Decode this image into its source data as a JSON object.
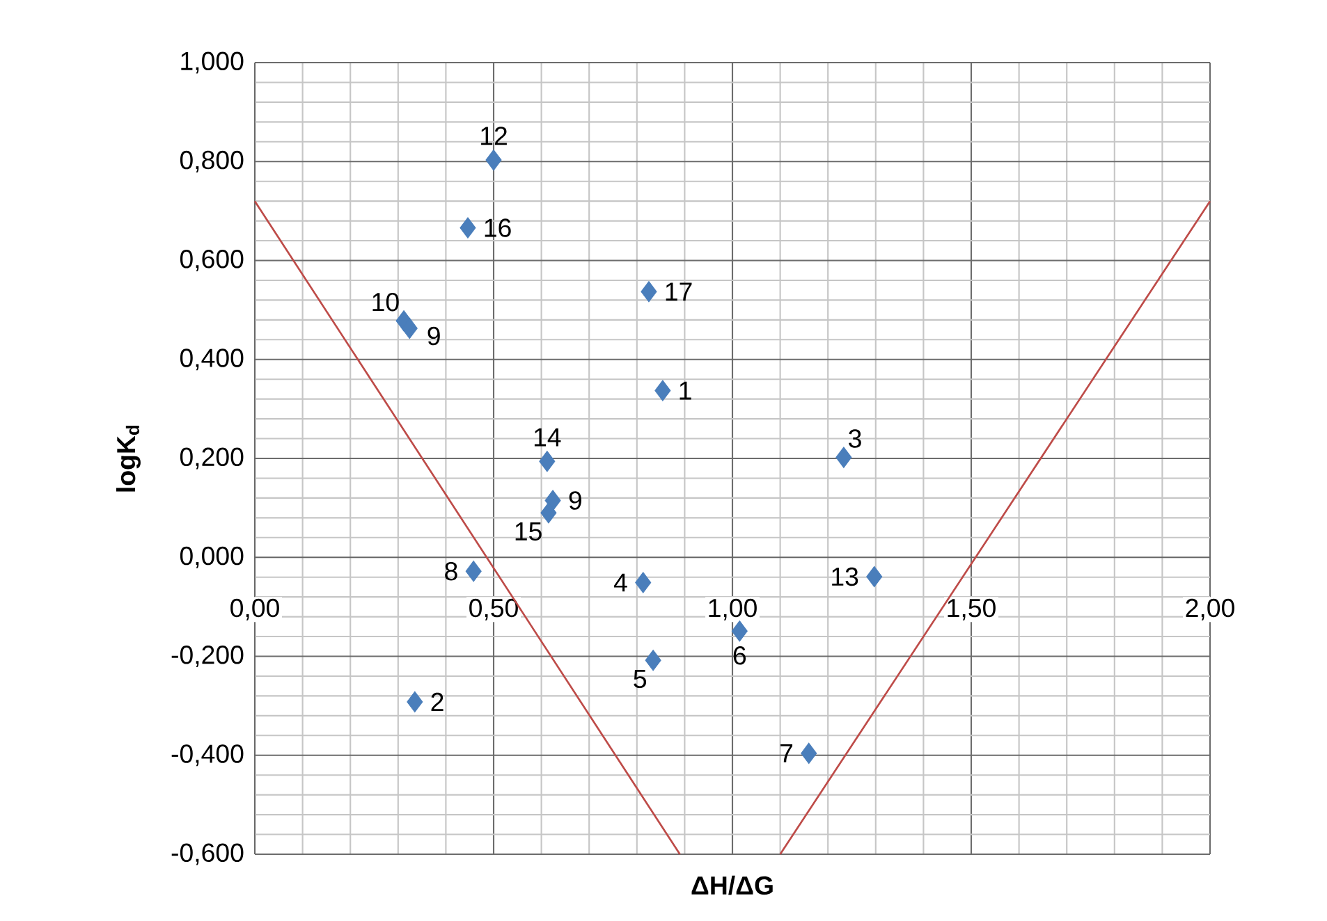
{
  "chart_data": {
    "type": "scatter",
    "xlabel": "ΔH/ΔG",
    "ylabel": "logK$_{d}$",
    "xlim": [
      0,
      2
    ],
    "ylim": [
      -0.6,
      1.0
    ],
    "xticks": [
      {
        "value": 0,
        "label": "0,00"
      },
      {
        "value": 0.5,
        "label": "0,50"
      },
      {
        "value": 1.0,
        "label": "1,00"
      },
      {
        "value": 1.5,
        "label": "1,50"
      },
      {
        "value": 2.0,
        "label": "2,00"
      }
    ],
    "yticks": [
      {
        "value": -0.6,
        "label": "-0,600"
      },
      {
        "value": -0.4,
        "label": "-0,400"
      },
      {
        "value": -0.2,
        "label": "-0,200"
      },
      {
        "value": 0,
        "label": "0,000"
      },
      {
        "value": 0.2,
        "label": "0,200"
      },
      {
        "value": 0.4,
        "label": "0,400"
      },
      {
        "value": 0.6,
        "label": "0,600"
      },
      {
        "value": 0.8,
        "label": "0,800"
      },
      {
        "value": 1.0,
        "label": "1,000"
      }
    ],
    "grid": true,
    "marker": "diamond",
    "series": [
      {
        "color": "#4a7ebb",
        "x": [
          0.5,
          0.446,
          0.312,
          0.324,
          0.825,
          0.854,
          1.233,
          0.612,
          0.624,
          0.615,
          0.458,
          0.813,
          1.297,
          0.834,
          1.015,
          0.335,
          1.16
        ],
        "values": [
          0.803,
          0.666,
          0.478,
          0.463,
          0.537,
          0.337,
          0.202,
          0.194,
          0.115,
          0.09,
          -0.028,
          -0.051,
          -0.039,
          -0.208,
          -0.149,
          -0.292,
          -0.396
        ]
      },
      {
        "type": "line",
        "marker": "none",
        "color": "#be4b48",
        "x": [
          0,
          0.89
        ],
        "values": [
          0.72,
          -0.6
        ]
      },
      {
        "type": "line",
        "marker": "none",
        "color": "#be4b48",
        "x": [
          1.1,
          2.0
        ],
        "values": [
          -0.6,
          0.72
        ]
      }
    ],
    "annotations": [
      {
        "text": "12",
        "x": 0.5,
        "y": 0.803
      },
      {
        "text": "16",
        "x": 0.446,
        "y": 0.666
      },
      {
        "text": "10",
        "x": 0.312,
        "y": 0.478
      },
      {
        "text": "9",
        "x": 0.324,
        "y": 0.463
      },
      {
        "text": "17",
        "x": 0.825,
        "y": 0.537
      },
      {
        "text": "1",
        "x": 0.854,
        "y": 0.337
      },
      {
        "text": "3",
        "x": 1.233,
        "y": 0.202
      },
      {
        "text": "14",
        "x": 0.612,
        "y": 0.194
      },
      {
        "text": "9",
        "x": 0.624,
        "y": 0.115
      },
      {
        "text": "15",
        "x": 0.615,
        "y": 0.09
      },
      {
        "text": "8",
        "x": 0.458,
        "y": -0.028
      },
      {
        "text": "4",
        "x": 0.813,
        "y": -0.051
      },
      {
        "text": "13",
        "x": 1.297,
        "y": -0.039
      },
      {
        "text": "5",
        "x": 0.834,
        "y": -0.208
      },
      {
        "text": "6",
        "x": 1.015,
        "y": -0.149
      },
      {
        "text": "2",
        "x": 0.335,
        "y": -0.292
      },
      {
        "text": "7",
        "x": 1.16,
        "y": -0.396
      }
    ]
  }
}
